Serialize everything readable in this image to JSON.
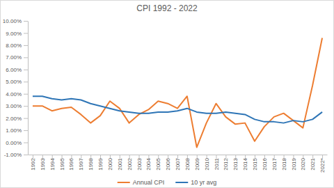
{
  "chart_data": {
    "type": "line",
    "title": "CPI 1992 - 2022",
    "categories": [
      "1992",
      "1993",
      "1994",
      "1995",
      "1996",
      "1997",
      "1998",
      "1999",
      "2000",
      "2001",
      "2002",
      "2003",
      "2004",
      "2005",
      "2006",
      "2007",
      "2008",
      "2009",
      "2010",
      "2011",
      "2012",
      "2013",
      "2014",
      "2015",
      "2016",
      "2017",
      "2018",
      "2019",
      "2020",
      "2021",
      "2022*"
    ],
    "series": [
      {
        "name": "Annual CPI",
        "color": "#ed7d31",
        "values": [
          3.0,
          3.0,
          2.6,
          2.8,
          2.9,
          2.3,
          1.6,
          2.2,
          3.4,
          2.8,
          1.6,
          2.3,
          2.7,
          3.4,
          3.2,
          2.8,
          3.8,
          -0.4,
          1.6,
          3.2,
          2.1,
          1.5,
          1.6,
          0.1,
          1.3,
          2.1,
          2.4,
          1.8,
          1.2,
          4.7,
          8.6
        ]
      },
      {
        "name": "10 yr avg",
        "color": "#2e75b6",
        "values": [
          3.8,
          3.8,
          3.6,
          3.5,
          3.6,
          3.5,
          3.2,
          3.0,
          2.8,
          2.6,
          2.5,
          2.4,
          2.4,
          2.5,
          2.5,
          2.6,
          2.8,
          2.5,
          2.4,
          2.4,
          2.5,
          2.4,
          2.3,
          1.9,
          1.7,
          1.7,
          1.6,
          1.8,
          1.7,
          1.9,
          2.5
        ]
      }
    ],
    "ylim": [
      -1,
      10
    ],
    "yticks": [
      {
        "value": -1,
        "label": "-1.00%"
      },
      {
        "value": 0,
        "label": "0.00%"
      },
      {
        "value": 1,
        "label": "1.00%"
      },
      {
        "value": 2,
        "label": "2.00%"
      },
      {
        "value": 3,
        "label": "3.00%"
      },
      {
        "value": 4,
        "label": "4.00%"
      },
      {
        "value": 5,
        "label": "5.00%"
      },
      {
        "value": 6,
        "label": "6.00%"
      },
      {
        "value": 7,
        "label": "7.00%"
      },
      {
        "value": 8,
        "label": "8.00%"
      },
      {
        "value": 9,
        "label": "9.00%"
      },
      {
        "value": 10,
        "label": "10.00%"
      }
    ],
    "grid": false,
    "legend": "bottom"
  }
}
